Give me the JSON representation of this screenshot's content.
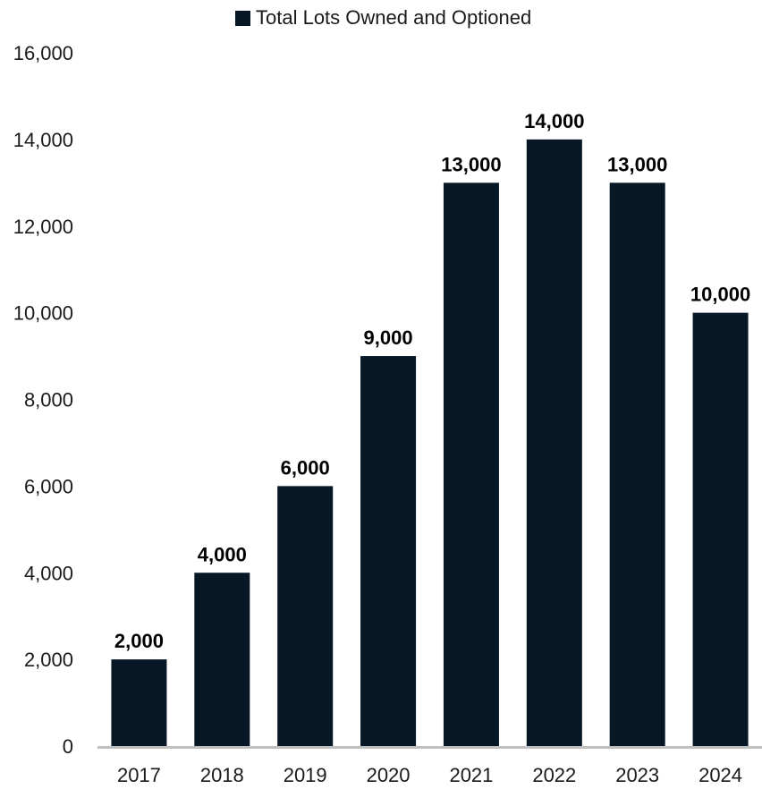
{
  "chart_data": {
    "type": "bar",
    "categories": [
      "2017",
      "2018",
      "2019",
      "2020",
      "2021",
      "2022",
      "2023",
      "2024"
    ],
    "series": [
      {
        "name": "Total Lots Owned and Optioned",
        "values": [
          2000,
          4000,
          6000,
          9000,
          13000,
          14000,
          13000,
          10000
        ]
      }
    ],
    "data_labels": [
      "2,000",
      "4,000",
      "6,000",
      "9,000",
      "13,000",
      "14,000",
      "13,000",
      "10,000"
    ],
    "y_ticks": [
      "0",
      "2,000",
      "4,000",
      "6,000",
      "8,000",
      "10,000",
      "12,000",
      "14,000",
      "16,000"
    ],
    "ylim": [
      0,
      16000
    ],
    "grid": false,
    "legend_position": "top",
    "colors": {
      "bar": "#071726",
      "axis": "#bfbfbf"
    }
  }
}
